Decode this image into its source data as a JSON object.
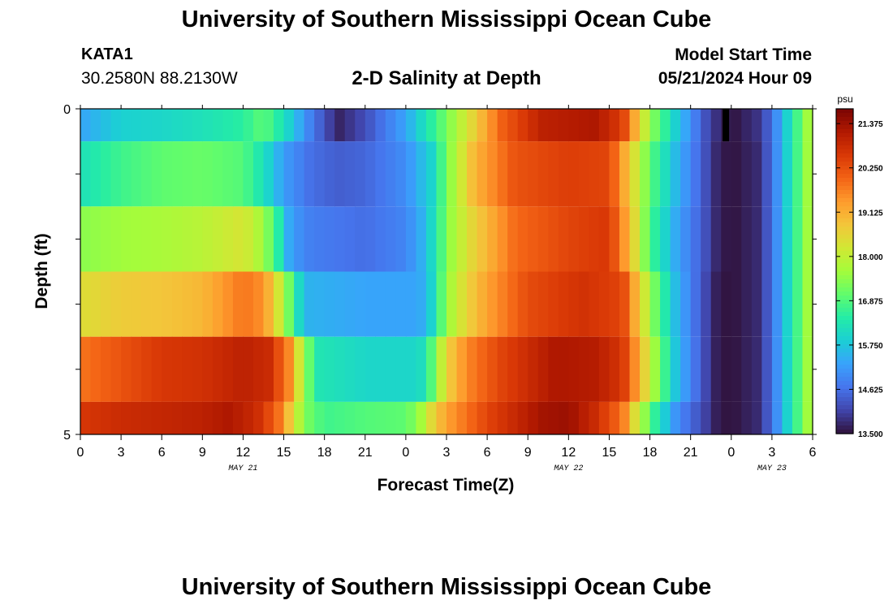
{
  "header": {
    "title": "University of Southern Mississippi Ocean Cube",
    "station": "KATA1",
    "coords": "30.2580N  88.2130W",
    "chart_title": "2-D Salinity at Depth",
    "start_label": "Model Start Time",
    "start_value": "05/21/2024 Hour 09"
  },
  "footer": {
    "title": "University of Southern Mississippi Ocean Cube"
  },
  "chart_data": {
    "type": "heatmap",
    "title": "2-D Salinity at Depth",
    "xlabel": "Forecast Time(Z)",
    "ylabel": "Depth (ft)",
    "x_hours": [
      0,
      54
    ],
    "x_tick_labels": [
      "0",
      "3",
      "6",
      "9",
      "12",
      "15",
      "18",
      "21",
      "0",
      "3",
      "6",
      "9",
      "12",
      "15",
      "18",
      "21",
      "0",
      "3",
      "6"
    ],
    "day_labels": [
      {
        "label": "MAY 21",
        "hour": 12
      },
      {
        "label": "MAY 22",
        "hour": 36
      },
      {
        "label": "MAY 23",
        "hour": 51
      }
    ],
    "y_range": [
      0,
      5
    ],
    "y_tick_labels": [
      "0",
      "5"
    ],
    "colorbar": {
      "unit": "psu",
      "min": 13.5,
      "max": 21.75,
      "tick_labels": [
        "21.375",
        "20.250",
        "19.125",
        "18.000",
        "16.875",
        "15.750",
        "14.625",
        "13.500"
      ],
      "colors": [
        "#30123b",
        "#4145ab",
        "#4675ed",
        "#39a2fc",
        "#1bcfd4",
        "#24eca6",
        "#61fc6c",
        "#a4fc3b",
        "#d1e834",
        "#f3c63a",
        "#fe9b2d",
        "#f36315",
        "#d93806",
        "#b11901",
        "#7a0403"
      ]
    },
    "layers": [
      {
        "depth_range": [
          0,
          0.5
        ],
        "keys": [
          [
            0,
            15.3
          ],
          [
            3,
            15.9
          ],
          [
            6,
            16.0
          ],
          [
            9,
            16.2
          ],
          [
            12,
            16.5
          ],
          [
            13.5,
            17.0
          ],
          [
            15,
            16.2
          ],
          [
            17,
            14.8
          ],
          [
            19,
            13.7
          ],
          [
            21,
            14.2
          ],
          [
            24,
            15.3
          ],
          [
            27,
            17.2
          ],
          [
            29,
            18.6
          ],
          [
            31,
            20.0
          ],
          [
            34,
            21.0
          ],
          [
            38,
            21.2
          ],
          [
            40,
            20.5
          ],
          [
            42,
            17.5
          ],
          [
            44,
            15.8
          ],
          [
            46,
            14.3
          ],
          [
            47,
            13.8
          ],
          [
            48,
            13.5
          ],
          [
            50,
            13.9
          ],
          [
            51,
            14.6
          ],
          [
            52,
            15.8
          ],
          [
            53,
            16.9
          ],
          [
            54,
            18.0
          ]
        ]
      },
      {
        "depth_range": [
          0.5,
          1.5
        ],
        "keys": [
          [
            0,
            16.2
          ],
          [
            3,
            16.7
          ],
          [
            6,
            17.0
          ],
          [
            9,
            17.1
          ],
          [
            12,
            16.9
          ],
          [
            13.5,
            16.2
          ],
          [
            15,
            15.2
          ],
          [
            17,
            14.6
          ],
          [
            19,
            14.4
          ],
          [
            21,
            14.5
          ],
          [
            24,
            15.0
          ],
          [
            26,
            16.0
          ],
          [
            27,
            17.2
          ],
          [
            29,
            19.0
          ],
          [
            32,
            20.2
          ],
          [
            36,
            20.5
          ],
          [
            39,
            20.4
          ],
          [
            40,
            19.3
          ],
          [
            42,
            17.0
          ],
          [
            44,
            15.5
          ],
          [
            46,
            14.3
          ],
          [
            47,
            13.7
          ],
          [
            48,
            13.5
          ],
          [
            50,
            13.8
          ],
          [
            51,
            14.6
          ],
          [
            52,
            15.8
          ],
          [
            53,
            16.9
          ],
          [
            54,
            18.0
          ]
        ]
      },
      {
        "depth_range": [
          1.5,
          2.5
        ],
        "keys": [
          [
            0,
            17.4
          ],
          [
            3,
            17.6
          ],
          [
            6,
            17.7
          ],
          [
            9,
            17.9
          ],
          [
            12,
            18.3
          ],
          [
            13.5,
            17.6
          ],
          [
            14.5,
            16.6
          ],
          [
            15.5,
            15.2
          ],
          [
            17,
            14.8
          ],
          [
            21,
            14.6
          ],
          [
            24,
            14.9
          ],
          [
            25.5,
            15.6
          ],
          [
            26.5,
            16.7
          ],
          [
            27.5,
            17.7
          ],
          [
            29,
            18.6
          ],
          [
            32,
            19.9
          ],
          [
            36,
            20.4
          ],
          [
            39,
            20.6
          ],
          [
            40.5,
            19.0
          ],
          [
            42,
            16.8
          ],
          [
            44,
            15.3
          ],
          [
            46,
            14.3
          ],
          [
            47,
            13.7
          ],
          [
            48,
            13.5
          ],
          [
            50,
            13.8
          ],
          [
            51,
            14.6
          ],
          [
            52,
            15.8
          ],
          [
            53,
            16.9
          ],
          [
            54,
            18.0
          ]
        ]
      },
      {
        "depth_range": [
          2.5,
          3.5
        ],
        "keys": [
          [
            0,
            18.4
          ],
          [
            3,
            18.7
          ],
          [
            6,
            18.8
          ],
          [
            9,
            19.0
          ],
          [
            12,
            19.8
          ],
          [
            13.5,
            19.5
          ],
          [
            14.5,
            18.4
          ],
          [
            15.5,
            17.0
          ],
          [
            16.5,
            15.5
          ],
          [
            21,
            15.3
          ],
          [
            25,
            15.3
          ],
          [
            26,
            16.0
          ],
          [
            27,
            17.5
          ],
          [
            28.5,
            18.6
          ],
          [
            30,
            19.3
          ],
          [
            33,
            20.3
          ],
          [
            37,
            20.7
          ],
          [
            40,
            20.4
          ],
          [
            41,
            19.0
          ],
          [
            42.5,
            17.0
          ],
          [
            44,
            15.5
          ],
          [
            46,
            14.2
          ],
          [
            47,
            13.6
          ],
          [
            48,
            13.5
          ],
          [
            50,
            13.8
          ],
          [
            51,
            14.6
          ],
          [
            52,
            15.8
          ],
          [
            53,
            16.9
          ],
          [
            54,
            18.0
          ]
        ]
      },
      {
        "depth_range": [
          3.5,
          4.5
        ],
        "keys": [
          [
            0,
            19.8
          ],
          [
            3,
            20.2
          ],
          [
            6,
            20.6
          ],
          [
            9,
            20.7
          ],
          [
            12,
            21.0
          ],
          [
            14,
            20.8
          ],
          [
            15.5,
            19.5
          ],
          [
            16.5,
            17.5
          ],
          [
            17.5,
            16.3
          ],
          [
            21,
            16.0
          ],
          [
            25,
            16.0
          ],
          [
            26,
            17.0
          ],
          [
            27,
            18.6
          ],
          [
            28.5,
            19.6
          ],
          [
            31,
            20.4
          ],
          [
            35,
            21.2
          ],
          [
            38,
            21.1
          ],
          [
            40,
            20.6
          ],
          [
            41,
            19.4
          ],
          [
            42.5,
            17.4
          ],
          [
            44,
            15.6
          ],
          [
            46,
            14.2
          ],
          [
            47,
            13.6
          ],
          [
            48,
            13.5
          ],
          [
            50,
            13.8
          ],
          [
            51,
            14.6
          ],
          [
            52,
            15.8
          ],
          [
            53,
            16.9
          ],
          [
            54,
            18.0
          ]
        ]
      },
      {
        "depth_range": [
          4.5,
          5.0
        ],
        "keys": [
          [
            0,
            20.6
          ],
          [
            3,
            20.8
          ],
          [
            6,
            20.9
          ],
          [
            9,
            21.0
          ],
          [
            11,
            21.2
          ],
          [
            13,
            20.8
          ],
          [
            14.5,
            20.0
          ],
          [
            15.5,
            18.7
          ],
          [
            16.5,
            17.3
          ],
          [
            18,
            16.7
          ],
          [
            21,
            16.9
          ],
          [
            24,
            17.0
          ],
          [
            25,
            17.5
          ],
          [
            26,
            18.6
          ],
          [
            27,
            19.3
          ],
          [
            30,
            20.4
          ],
          [
            34,
            21.3
          ],
          [
            36,
            21.4
          ],
          [
            38,
            20.8
          ],
          [
            40,
            19.8
          ],
          [
            41,
            18.2
          ],
          [
            42.5,
            16.4
          ],
          [
            44,
            15.0
          ],
          [
            46,
            14.1
          ],
          [
            47,
            13.6
          ],
          [
            48,
            13.5
          ],
          [
            50,
            13.8
          ],
          [
            51,
            14.6
          ],
          [
            52,
            15.8
          ],
          [
            53,
            16.9
          ],
          [
            54,
            18.0
          ]
        ]
      }
    ],
    "marker": {
      "hour": 47.6,
      "depth_range": [
        0,
        0.5
      ]
    }
  }
}
